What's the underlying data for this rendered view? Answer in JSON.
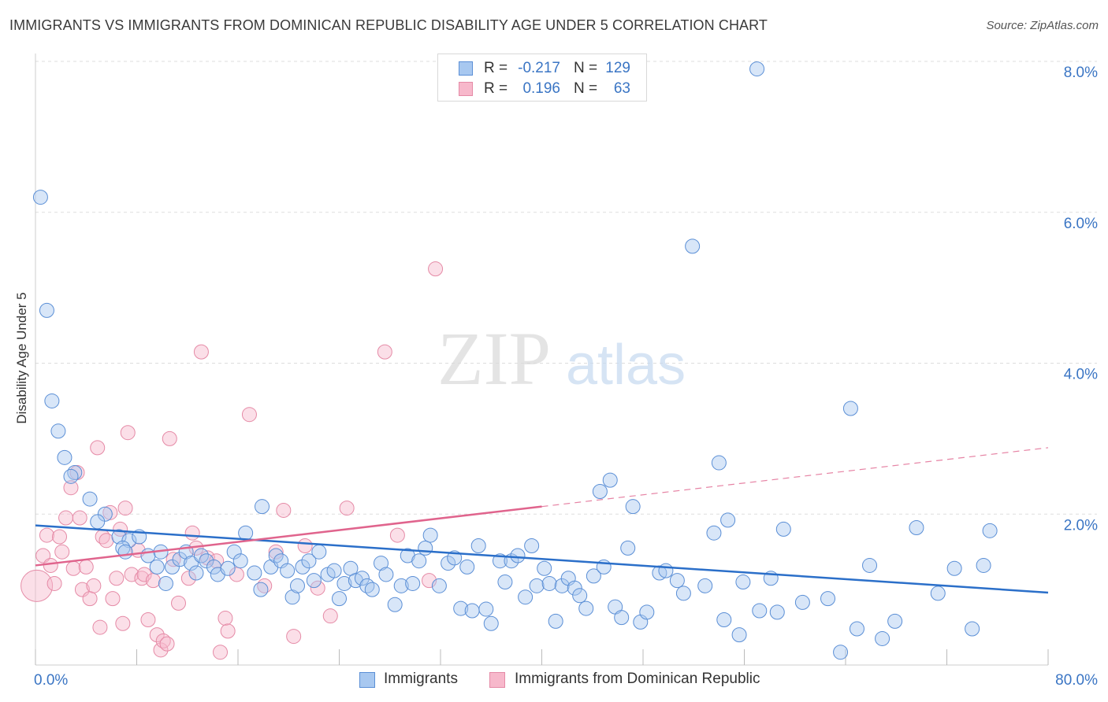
{
  "header": {
    "title": "IMMIGRANTS VS IMMIGRANTS FROM DOMINICAN REPUBLIC DISABILITY AGE UNDER 5 CORRELATION CHART",
    "source": "Source: ZipAtlas.com"
  },
  "legend": {
    "rows": [
      {
        "r_label": "R =",
        "r_value": "-0.217",
        "n_label": "N =",
        "n_value": "129"
      },
      {
        "r_label": "R =",
        "r_value": "0.196",
        "n_label": "N =",
        "n_value": "63"
      }
    ]
  },
  "colors": {
    "blue_fill": "#a8c8f0",
    "blue_stroke": "#5b8fd6",
    "blue_line": "#2b6fc9",
    "pink_fill": "#f7b8cb",
    "pink_stroke": "#e58aa6",
    "pink_line": "#e0648d",
    "tick_label": "#3a75c4",
    "grid": "#dddddd"
  },
  "watermark": {
    "part1": "ZIP",
    "part2": "atlas"
  },
  "chart_data": {
    "type": "scatter",
    "title": "IMMIGRANTS VS IMMIGRANTS FROM DOMINICAN REPUBLIC DISABILITY AGE UNDER 5 CORRELATION CHART",
    "xlabel": "",
    "ylabel": "Disability Age Under 5",
    "xlim": [
      0,
      80
    ],
    "ylim": [
      0,
      8.4
    ],
    "x_tick_labels": {
      "min": "0.0%",
      "max": "80.0%"
    },
    "y_ticks": [
      2,
      4,
      6,
      8
    ],
    "y_tick_labels": [
      "2.0%",
      "4.0%",
      "6.0%",
      "8.0%"
    ],
    "grid": true,
    "legend_position": "top-center",
    "series": [
      {
        "name": "Immigrants",
        "r": -0.217,
        "n": 129,
        "trend": {
          "x0": 0,
          "y0": 1.85,
          "x1": 80,
          "y1": 0.96
        },
        "points": [
          [
            0.4,
            6.2
          ],
          [
            0.9,
            4.7
          ],
          [
            1.3,
            3.5
          ],
          [
            1.8,
            3.1
          ],
          [
            2.3,
            2.75
          ],
          [
            3.1,
            2.55
          ],
          [
            2.8,
            2.5
          ],
          [
            4.3,
            2.2
          ],
          [
            5.5,
            2.0
          ],
          [
            4.9,
            1.9
          ],
          [
            6.6,
            1.7
          ],
          [
            7.4,
            1.65
          ],
          [
            8.2,
            1.7
          ],
          [
            6.9,
            1.55
          ],
          [
            7.1,
            1.5
          ],
          [
            8.9,
            1.45
          ],
          [
            9.6,
            1.3
          ],
          [
            9.9,
            1.5
          ],
          [
            10.3,
            1.08
          ],
          [
            10.8,
            1.3
          ],
          [
            11.4,
            1.4
          ],
          [
            11.9,
            1.5
          ],
          [
            12.3,
            1.35
          ],
          [
            12.7,
            1.22
          ],
          [
            13.1,
            1.45
          ],
          [
            13.5,
            1.38
          ],
          [
            14.1,
            1.3
          ],
          [
            14.4,
            1.2
          ],
          [
            15.2,
            1.28
          ],
          [
            15.7,
            1.5
          ],
          [
            16.2,
            1.38
          ],
          [
            16.6,
            1.75
          ],
          [
            17.3,
            1.22
          ],
          [
            17.8,
            1.0
          ],
          [
            17.9,
            2.1
          ],
          [
            18.6,
            1.3
          ],
          [
            19.0,
            1.45
          ],
          [
            19.4,
            1.38
          ],
          [
            19.9,
            1.25
          ],
          [
            20.3,
            0.9
          ],
          [
            20.7,
            1.05
          ],
          [
            21.1,
            1.3
          ],
          [
            21.6,
            1.38
          ],
          [
            22.0,
            1.12
          ],
          [
            22.4,
            1.5
          ],
          [
            23.1,
            1.2
          ],
          [
            23.6,
            1.25
          ],
          [
            24.0,
            0.88
          ],
          [
            24.4,
            1.08
          ],
          [
            24.9,
            1.28
          ],
          [
            25.3,
            1.12
          ],
          [
            25.8,
            1.15
          ],
          [
            26.2,
            1.05
          ],
          [
            26.6,
            1.0
          ],
          [
            27.3,
            1.35
          ],
          [
            27.7,
            1.2
          ],
          [
            28.4,
            0.8
          ],
          [
            28.9,
            1.05
          ],
          [
            29.4,
            1.45
          ],
          [
            29.8,
            1.08
          ],
          [
            30.3,
            1.38
          ],
          [
            30.8,
            1.55
          ],
          [
            31.2,
            1.72
          ],
          [
            31.9,
            1.05
          ],
          [
            32.6,
            1.35
          ],
          [
            33.1,
            1.42
          ],
          [
            33.6,
            0.75
          ],
          [
            34.1,
            1.3
          ],
          [
            34.5,
            0.72
          ],
          [
            35.0,
            1.58
          ],
          [
            35.6,
            0.74
          ],
          [
            36.0,
            0.55
          ],
          [
            36.7,
            1.38
          ],
          [
            37.1,
            1.1
          ],
          [
            37.6,
            1.38
          ],
          [
            38.1,
            1.45
          ],
          [
            38.7,
            0.9
          ],
          [
            39.2,
            1.58
          ],
          [
            39.6,
            1.05
          ],
          [
            40.2,
            1.28
          ],
          [
            40.6,
            1.08
          ],
          [
            41.1,
            0.58
          ],
          [
            41.6,
            1.05
          ],
          [
            42.1,
            1.15
          ],
          [
            42.6,
            1.02
          ],
          [
            43.0,
            0.92
          ],
          [
            43.5,
            0.75
          ],
          [
            44.1,
            1.18
          ],
          [
            44.6,
            2.3
          ],
          [
            44.9,
            1.3
          ],
          [
            45.4,
            2.45
          ],
          [
            45.8,
            0.77
          ],
          [
            46.3,
            0.63
          ],
          [
            46.8,
            1.55
          ],
          [
            47.2,
            2.1
          ],
          [
            47.8,
            0.57
          ],
          [
            48.3,
            0.7
          ],
          [
            49.3,
            1.22
          ],
          [
            49.8,
            1.25
          ],
          [
            50.7,
            1.12
          ],
          [
            51.2,
            0.95
          ],
          [
            51.9,
            5.55
          ],
          [
            52.9,
            1.05
          ],
          [
            53.6,
            1.75
          ],
          [
            54.0,
            2.68
          ],
          [
            54.4,
            0.6
          ],
          [
            54.7,
            1.92
          ],
          [
            55.6,
            0.4
          ],
          [
            55.9,
            1.1
          ],
          [
            57.0,
            7.9
          ],
          [
            57.2,
            0.72
          ],
          [
            58.6,
            0.7
          ],
          [
            58.1,
            1.15
          ],
          [
            59.1,
            1.8
          ],
          [
            60.6,
            0.83
          ],
          [
            62.6,
            0.88
          ],
          [
            63.6,
            0.17
          ],
          [
            64.4,
            3.4
          ],
          [
            64.9,
            0.48
          ],
          [
            65.9,
            1.32
          ],
          [
            66.9,
            0.35
          ],
          [
            67.9,
            0.58
          ],
          [
            69.6,
            1.82
          ],
          [
            71.3,
            0.95
          ],
          [
            72.6,
            1.28
          ],
          [
            74.0,
            0.48
          ],
          [
            74.9,
            1.32
          ],
          [
            75.4,
            1.78
          ]
        ]
      },
      {
        "name": "Immigrants from Dominican Republic",
        "r": 0.196,
        "n": 63,
        "trend": {
          "x0": 0,
          "y0": 1.32,
          "x1": 80,
          "y1": 2.88,
          "solid_until_x": 40
        },
        "points": [
          [
            0.1,
            1.05
          ],
          [
            0.6,
            1.45
          ],
          [
            0.9,
            1.72
          ],
          [
            1.2,
            1.32
          ],
          [
            1.5,
            1.08
          ],
          [
            1.9,
            1.7
          ],
          [
            2.1,
            1.5
          ],
          [
            2.4,
            1.95
          ],
          [
            2.8,
            2.35
          ],
          [
            3.0,
            1.28
          ],
          [
            3.3,
            2.55
          ],
          [
            3.5,
            1.95
          ],
          [
            3.7,
            1.0
          ],
          [
            4.0,
            1.3
          ],
          [
            4.3,
            0.88
          ],
          [
            4.6,
            1.05
          ],
          [
            4.9,
            2.88
          ],
          [
            5.1,
            0.5
          ],
          [
            5.3,
            1.7
          ],
          [
            5.6,
            1.65
          ],
          [
            5.9,
            2.02
          ],
          [
            6.1,
            0.88
          ],
          [
            6.4,
            1.15
          ],
          [
            6.7,
            1.8
          ],
          [
            6.9,
            0.55
          ],
          [
            7.1,
            2.08
          ],
          [
            7.3,
            3.08
          ],
          [
            7.6,
            1.2
          ],
          [
            8.1,
            1.52
          ],
          [
            8.4,
            1.15
          ],
          [
            8.6,
            1.2
          ],
          [
            8.9,
            0.6
          ],
          [
            9.3,
            1.12
          ],
          [
            9.6,
            0.4
          ],
          [
            9.9,
            0.2
          ],
          [
            10.1,
            0.32
          ],
          [
            10.4,
            0.28
          ],
          [
            10.6,
            3.0
          ],
          [
            10.9,
            1.4
          ],
          [
            11.3,
            0.82
          ],
          [
            12.1,
            1.15
          ],
          [
            12.4,
            1.75
          ],
          [
            12.7,
            1.55
          ],
          [
            13.1,
            4.15
          ],
          [
            13.6,
            1.42
          ],
          [
            14.3,
            1.38
          ],
          [
            14.6,
            0.17
          ],
          [
            15.0,
            0.62
          ],
          [
            15.2,
            0.45
          ],
          [
            15.9,
            1.2
          ],
          [
            16.9,
            3.32
          ],
          [
            18.1,
            1.05
          ],
          [
            19.0,
            1.5
          ],
          [
            19.6,
            2.05
          ],
          [
            20.4,
            0.38
          ],
          [
            21.3,
            1.58
          ],
          [
            22.3,
            1.02
          ],
          [
            23.3,
            0.65
          ],
          [
            24.6,
            2.08
          ],
          [
            27.6,
            4.15
          ],
          [
            28.6,
            1.72
          ],
          [
            31.1,
            1.12
          ],
          [
            31.6,
            5.25
          ]
        ]
      }
    ]
  },
  "axes": {
    "y_title": "Disability Age Under 5"
  }
}
